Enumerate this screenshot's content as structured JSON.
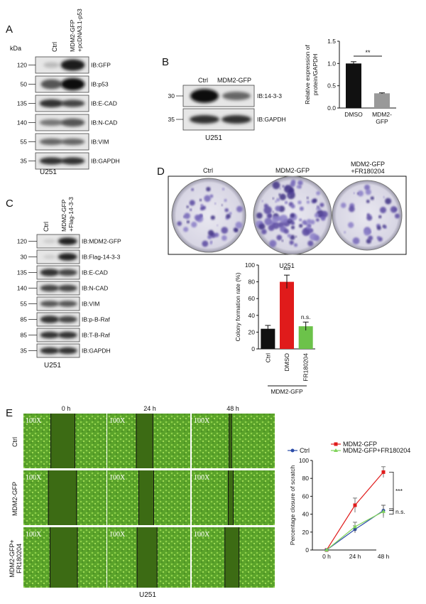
{
  "panelA": {
    "letter": "A",
    "unit": "kDa",
    "lanes": [
      "Ctrl",
      "MDM2-GFP\n+pcDNA3.1-p53"
    ],
    "rows": [
      {
        "mw": "120",
        "label": "IB:GFP"
      },
      {
        "mw": "50",
        "label": "IB:p53"
      },
      {
        "mw": "135",
        "label": "IB:E-CAD"
      },
      {
        "mw": "140",
        "label": "IB:N-CAD"
      },
      {
        "mw": "55",
        "label": "IB:VIM"
      },
      {
        "mw": "35",
        "label": "IB:GAPDH"
      }
    ],
    "cell": "U251"
  },
  "panelB": {
    "letter": "B",
    "lanes": [
      "Ctrl",
      "MDM2-GFP"
    ],
    "rows": [
      {
        "mw": "30",
        "label": "IB:14-3-3"
      },
      {
        "mw": "35",
        "label": "IB:GAPDH"
      }
    ],
    "cell": "U251"
  },
  "panelC": {
    "letter": "C",
    "lanes": [
      "Ctrl",
      "MDM2-GFP\n+Flag-14-3-3"
    ],
    "rows": [
      {
        "mw": "120",
        "label": "IB:MDM2-GFP"
      },
      {
        "mw": "30",
        "label": "IB:Flag-14-3-3"
      },
      {
        "mw": "135",
        "label": "IB:E-CAD"
      },
      {
        "mw": "140",
        "label": "IB:N-CAD"
      },
      {
        "mw": "55",
        "label": "IB:VIM"
      },
      {
        "mw": "85",
        "label": "IB:p-B-Raf"
      },
      {
        "mw": "85",
        "label": "IB:T-B-Raf"
      },
      {
        "mw": "35",
        "label": "IB:GAPDH"
      }
    ],
    "cell": "U251"
  },
  "panelD": {
    "letter": "D",
    "plate_labels": [
      "Ctrl",
      "MDM2-GFP",
      "MDM2-GFP\n+FR180204"
    ],
    "cell": "U251",
    "group_label": "MDM2-GFP"
  },
  "panelE": {
    "letter": "E",
    "times": [
      "0 h",
      "24 h",
      "48 h"
    ],
    "rows": [
      "Ctrl",
      "MDM2-GFP",
      "MDM2-GFP+\nFR180204"
    ],
    "mag": "100X",
    "cell": "U251"
  },
  "colors": {
    "black": "#111111",
    "red": "#e01b1b",
    "green": "#6cc24a",
    "gray": "#999999",
    "blue": "#2b4ca8",
    "lightgreen": "#7fd35a"
  },
  "chart_data": [
    {
      "type": "bar",
      "categories": [
        "DMSO",
        "MDM2-\nGFP"
      ],
      "values": [
        1.0,
        0.33
      ],
      "errors": [
        0.04,
        0.01
      ],
      "ylabel": "Relative expression of\nprotein/GAPDH",
      "ylim": [
        0,
        1.5
      ],
      "yticks": [
        0.0,
        0.5,
        1.0,
        1.5
      ],
      "significance": "**",
      "colors": [
        "#111111",
        "#999999"
      ]
    },
    {
      "type": "bar",
      "categories": [
        "Ctrl",
        "DMSO",
        "FR180204"
      ],
      "values": [
        24,
        80,
        27
      ],
      "errors": [
        4,
        8,
        5
      ],
      "ylabel": "Colony formation rate (%)",
      "ylim": [
        0,
        100
      ],
      "yticks": [
        0,
        20,
        40,
        60,
        80,
        100
      ],
      "annotations": [
        "",
        "***",
        "n.s."
      ],
      "colors": [
        "#111111",
        "#e01b1b",
        "#6cc24a"
      ]
    },
    {
      "type": "line",
      "x": [
        "0 h",
        "24 h",
        "48 h"
      ],
      "series": [
        {
          "name": "MDM2-GFP",
          "values": [
            0,
            50,
            87
          ],
          "errors": [
            0,
            8,
            6
          ],
          "color": "#e01b1b"
        },
        {
          "name": "Ctrl",
          "values": [
            0,
            23,
            44
          ],
          "errors": [
            0,
            4,
            6
          ],
          "color": "#2b4ca8"
        },
        {
          "name": "MDM2-GFP+FR180204",
          "values": [
            0,
            26,
            43
          ],
          "errors": [
            0,
            5,
            7
          ],
          "color": "#7fd35a"
        }
      ],
      "ylabel": "Percentage closure of scratch",
      "ylim": [
        0,
        100
      ],
      "yticks": [
        0,
        20,
        40,
        60,
        80,
        100
      ],
      "annotations": [
        "***",
        "n.s."
      ],
      "legend": "top"
    }
  ]
}
